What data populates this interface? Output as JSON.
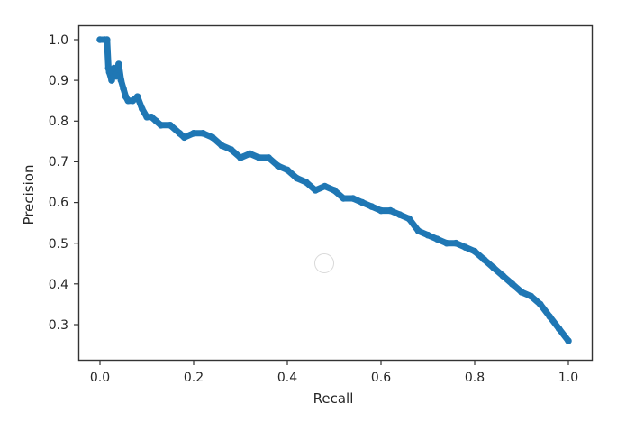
{
  "chart_data": {
    "type": "line",
    "title": "",
    "xlabel": "Recall",
    "ylabel": "Precision",
    "xlim": [
      -0.045,
      1.045
    ],
    "ylim": [
      0.235,
      1.035
    ],
    "xticks": [
      0.0,
      0.2,
      0.4,
      0.6,
      0.8,
      1.0
    ],
    "xtick_labels": [
      "0.0",
      "0.2",
      "0.4",
      "0.6",
      "0.8",
      "1.0"
    ],
    "yticks": [
      0.3,
      0.4,
      0.5,
      0.6,
      0.7,
      0.8,
      0.9,
      1.0
    ],
    "ytick_labels": [
      "0.3",
      "0.4",
      "0.5",
      "0.6",
      "0.7",
      "0.8",
      "0.9",
      "1.0"
    ],
    "grid": false,
    "legend": null,
    "series": [
      {
        "name": "precision-recall",
        "color": "#1f77b4",
        "marker": "o",
        "x": [
          0.0,
          0.01,
          0.015,
          0.018,
          0.02,
          0.025,
          0.03,
          0.035,
          0.04,
          0.045,
          0.05,
          0.055,
          0.06,
          0.07,
          0.08,
          0.09,
          0.1,
          0.11,
          0.12,
          0.13,
          0.15,
          0.17,
          0.18,
          0.2,
          0.22,
          0.24,
          0.26,
          0.28,
          0.3,
          0.32,
          0.34,
          0.36,
          0.38,
          0.4,
          0.42,
          0.44,
          0.46,
          0.48,
          0.5,
          0.52,
          0.54,
          0.56,
          0.58,
          0.6,
          0.62,
          0.64,
          0.66,
          0.68,
          0.7,
          0.72,
          0.74,
          0.76,
          0.78,
          0.8,
          0.82,
          0.84,
          0.86,
          0.88,
          0.9,
          0.92,
          0.94,
          0.96,
          0.98,
          1.0
        ],
        "y": [
          1.0,
          1.0,
          1.0,
          0.93,
          0.92,
          0.9,
          0.93,
          0.91,
          0.94,
          0.9,
          0.88,
          0.86,
          0.85,
          0.85,
          0.86,
          0.83,
          0.81,
          0.81,
          0.8,
          0.79,
          0.79,
          0.77,
          0.76,
          0.77,
          0.77,
          0.76,
          0.74,
          0.73,
          0.71,
          0.72,
          0.71,
          0.71,
          0.69,
          0.68,
          0.66,
          0.65,
          0.63,
          0.64,
          0.63,
          0.61,
          0.61,
          0.6,
          0.59,
          0.58,
          0.58,
          0.57,
          0.56,
          0.53,
          0.52,
          0.51,
          0.5,
          0.5,
          0.49,
          0.48,
          0.46,
          0.44,
          0.42,
          0.4,
          0.38,
          0.37,
          0.35,
          0.32,
          0.29,
          0.26
        ]
      }
    ]
  },
  "labels": {
    "xlabel": "Recall",
    "ylabel": "Precision",
    "xticks": [
      "0.0",
      "0.2",
      "0.4",
      "0.6",
      "0.8",
      "1.0"
    ],
    "yticks": [
      "1.0",
      "0.9",
      "0.8",
      "0.7",
      "0.6",
      "0.5",
      "0.4",
      "0.3"
    ]
  }
}
